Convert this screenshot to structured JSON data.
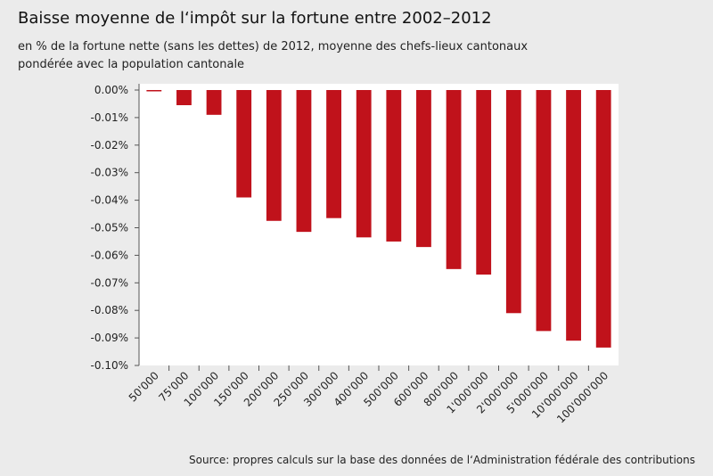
{
  "chart_data": {
    "type": "bar",
    "title": "Baisse moyenne de l‘impôt sur la fortune entre 2002–2012",
    "subtitle_lines": [
      "en % de la fortune nette (sans les dettes) de 2012, moyenne des chefs-lieux cantonaux",
      "pondérée avec la population cantonale"
    ],
    "source": "Source: propres calculs sur la base des données de l‘Administration fédérale des contributions",
    "categories": [
      "50'000",
      "75'000",
      "100'000",
      "150'000",
      "200'000",
      "250'000",
      "300'000",
      "400'000",
      "500'000",
      "600'000",
      "800'000",
      "1'000'000",
      "2'000'000",
      "5'000'000",
      "10'000'000",
      "100'000'000"
    ],
    "values": [
      -0.0002,
      -0.0055,
      -0.009,
      -0.039,
      -0.0475,
      -0.0515,
      -0.0465,
      -0.0535,
      -0.055,
      -0.057,
      -0.065,
      -0.067,
      -0.081,
      -0.0875,
      -0.091,
      -0.0935
    ],
    "ylim": [
      -0.1,
      0
    ],
    "yticks": [
      0,
      -0.01,
      -0.02,
      -0.03,
      -0.04,
      -0.05,
      -0.06,
      -0.07,
      -0.08,
      -0.09,
      -0.1
    ],
    "ytick_labels": [
      "0.00%",
      "-0.01%",
      "-0.02%",
      "-0.03%",
      "-0.04%",
      "-0.05%",
      "-0.06%",
      "-0.07%",
      "-0.08%",
      "-0.09%",
      "-0.10%"
    ],
    "bar_color": "#c0121b",
    "plot_background": "#ffffff",
    "grid": false,
    "legend": "none",
    "xlabel": "",
    "ylabel": ""
  }
}
